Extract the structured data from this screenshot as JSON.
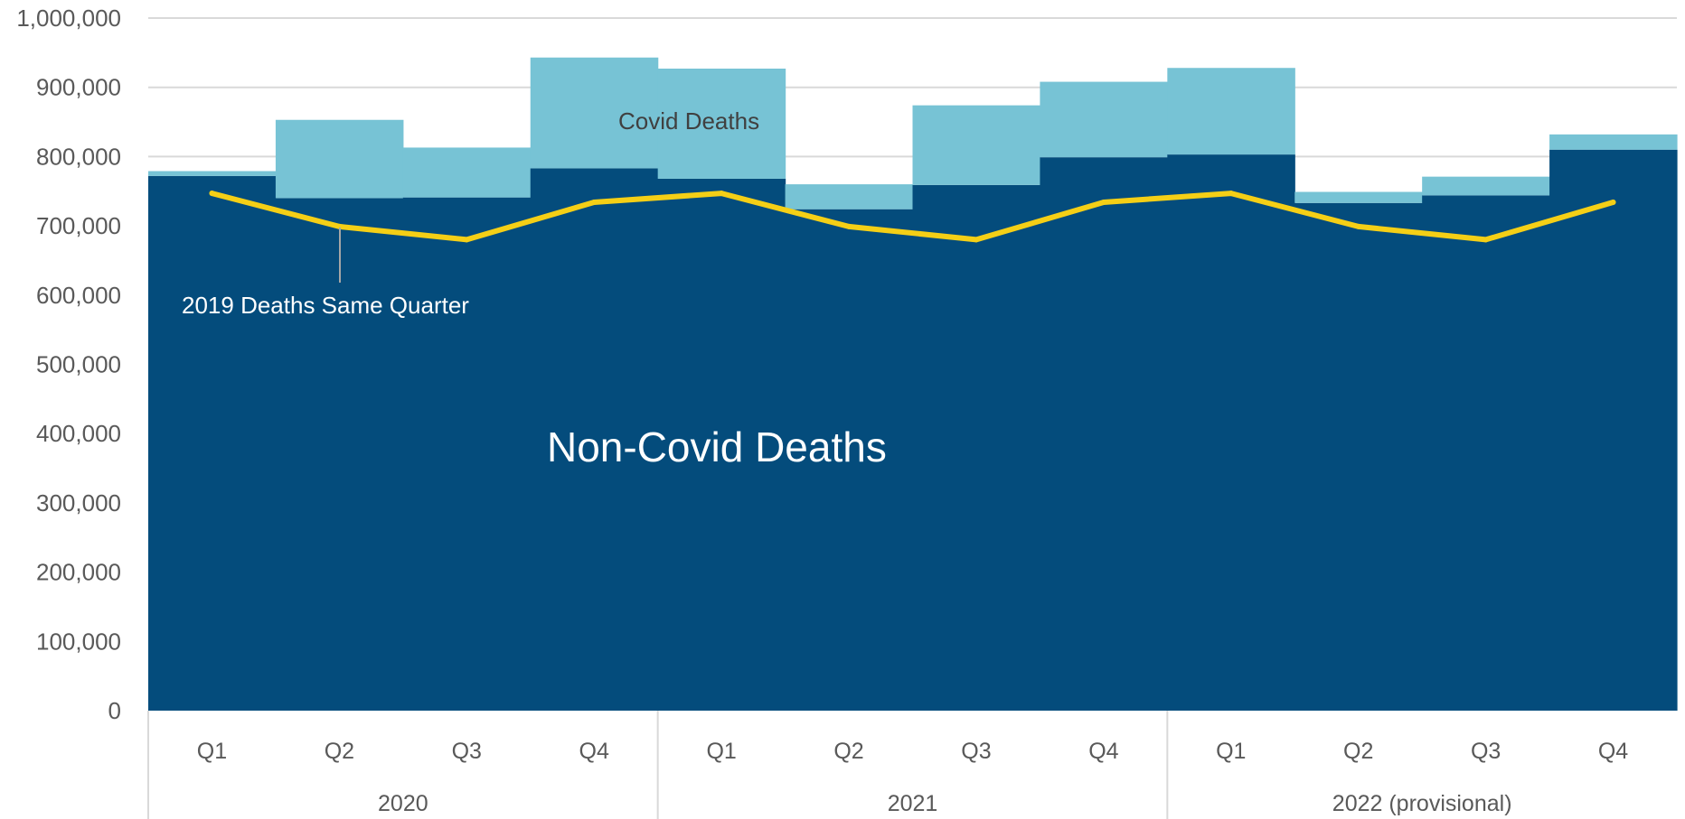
{
  "chart_data": {
    "type": "bar",
    "title": "",
    "xlabel": "",
    "ylabel": "",
    "ylim": [
      0,
      1000000
    ],
    "yticks": [
      0,
      100000,
      200000,
      300000,
      400000,
      500000,
      600000,
      700000,
      800000,
      900000,
      1000000
    ],
    "ytick_labels": [
      "0",
      "100,000",
      "200,000",
      "300,000",
      "400,000",
      "500,000",
      "600,000",
      "700,000",
      "800,000",
      "900,000",
      "1,000,000"
    ],
    "categories": [
      "Q1",
      "Q2",
      "Q3",
      "Q4",
      "Q1",
      "Q2",
      "Q3",
      "Q4",
      "Q1",
      "Q2",
      "Q3",
      "Q4"
    ],
    "groups": [
      {
        "label": "2020",
        "count": 4
      },
      {
        "label": "2021",
        "count": 4
      },
      {
        "label": "2022 (provisional)",
        "count": 4
      }
    ],
    "grid": true,
    "stacked": true,
    "series": [
      {
        "values": [
          772000,
          740000,
          741000,
          783000,
          768000,
          724000,
          759000,
          799000,
          803000,
          733000,
          744000,
          810000
        ],
        "color": "#044c7c"
      },
      {
        "values": [
          7000,
          113000,
          72000,
          160000,
          159000,
          36000,
          115000,
          109000,
          125000,
          16000,
          27000,
          22000
        ],
        "color": "#77c3d5"
      },
      {
        "type": "line",
        "values": [
          747000,
          699000,
          680000,
          734000,
          747000,
          699000,
          680000,
          734000,
          747000,
          699000,
          680000,
          734000
        ],
        "color": "#f5cf16"
      }
    ],
    "annotations": {
      "covid": "Covid Deaths",
      "baseline_2019": "2019 Deaths Same Quarter",
      "non_covid": "Non-Covid Deaths"
    }
  }
}
